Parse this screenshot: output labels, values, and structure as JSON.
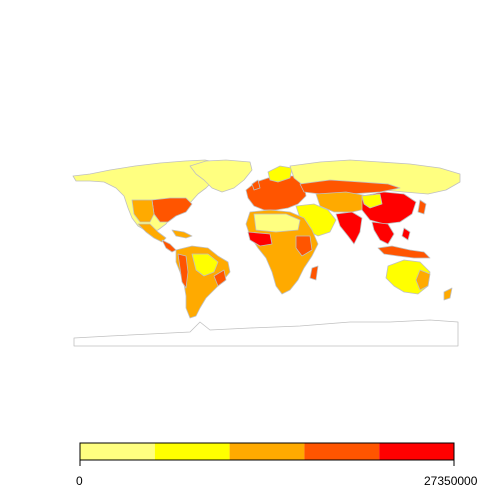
{
  "map": {
    "projection": "equirectangular",
    "background": "#ffffff",
    "border_color": "#c0c0c0",
    "ocean_color": "#ffffff",
    "grid": false
  },
  "legend": {
    "placement": "bottom",
    "min_label": "0",
    "max_label": "27350000",
    "min_value": 0,
    "max_value": 27350000,
    "bins": [
      {
        "color": "#ffff80"
      },
      {
        "color": "#ffff00"
      },
      {
        "color": "#ffaa00"
      },
      {
        "color": "#ff5500"
      },
      {
        "color": "#ff0000"
      }
    ]
  },
  "palette": [
    "#ffff80",
    "#ffff00",
    "#ffaa00",
    "#ff5500",
    "#ff0000"
  ]
}
